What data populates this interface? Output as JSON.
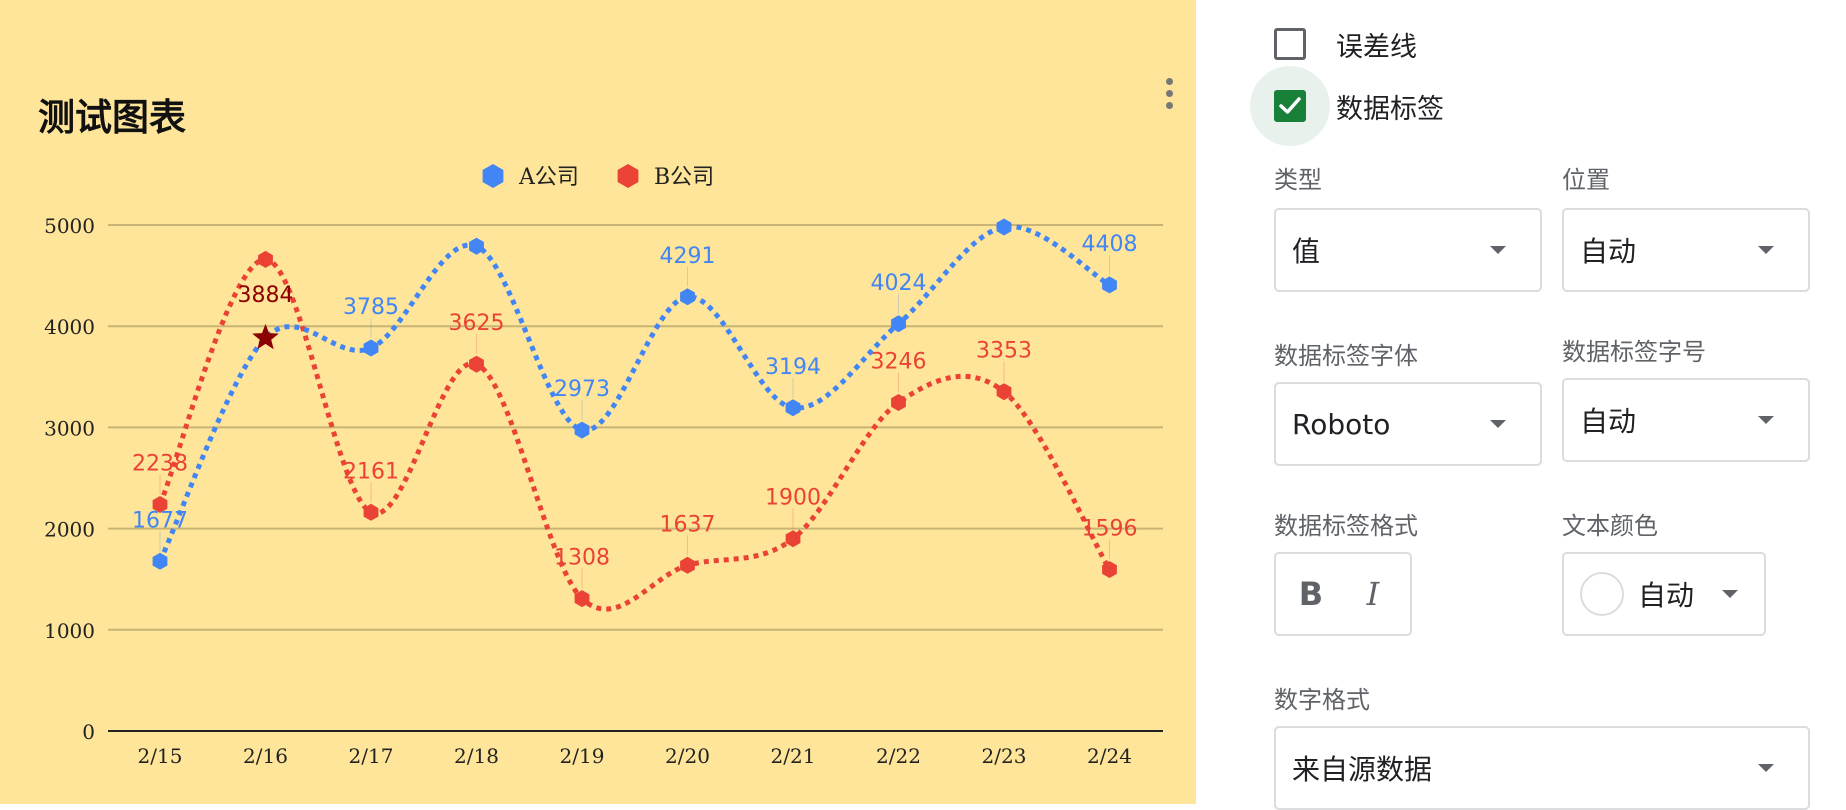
{
  "chart_data": {
    "type": "line",
    "title": "测试图表",
    "categories": [
      "2/15",
      "2/16",
      "2/17",
      "2/18",
      "2/19",
      "2/20",
      "2/21",
      "2/22",
      "2/23",
      "2/24"
    ],
    "ylim": [
      0,
      5000
    ],
    "yticks": [
      "0",
      "1000",
      "2000",
      "3000",
      "4000",
      "5000"
    ],
    "grid": true,
    "legend": "top-center",
    "series": [
      {
        "name": "A公司",
        "color": "#4285f4",
        "values": [
          1677,
          3884,
          3785,
          4790,
          2973,
          4291,
          3194,
          4024,
          4980,
          4408
        ],
        "labels": [
          "1677",
          "",
          "3785",
          "",
          "2973",
          "4291",
          "3194",
          "4024",
          "",
          "4408"
        ]
      },
      {
        "name": "B公司",
        "color": "#ea4335",
        "values": [
          2238,
          4660,
          2161,
          3625,
          1308,
          1637,
          1900,
          3246,
          3353,
          1596
        ],
        "labels": [
          "2238",
          "",
          "2161",
          "3625",
          "1308",
          "1637",
          "1900",
          "3246",
          "3353",
          "1596"
        ]
      }
    ],
    "highlight": {
      "series": 0,
      "index": 1,
      "label": "3884",
      "color": "#8b0000"
    }
  },
  "panel": {
    "error_bars_label": "误差线",
    "data_labels_label": "数据标签",
    "type_label": "类型",
    "type_value": "值",
    "position_label": "位置",
    "position_value": "自动",
    "font_label": "数据标签字体",
    "font_value": "Roboto",
    "size_label": "数据标签字号",
    "size_value": "自动",
    "format_label": "数据标签格式",
    "bold": "B",
    "italic": "I",
    "color_label": "文本颜色",
    "color_value": "自动",
    "number_format_label": "数字格式",
    "number_format_value": "来自源数据"
  }
}
